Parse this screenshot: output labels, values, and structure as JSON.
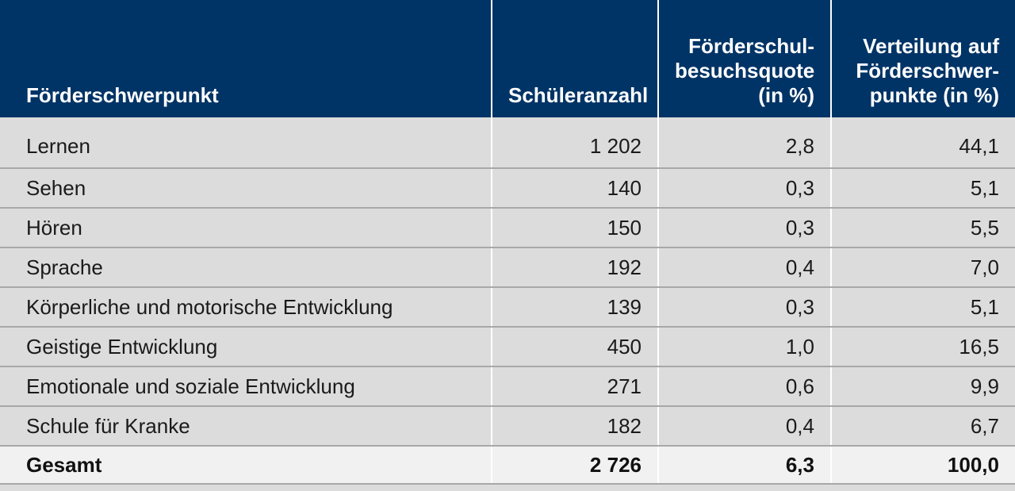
{
  "table": {
    "headers": [
      "Förderschwerpunkt",
      "Schüleranzahl",
      "Förderschul-\nbesuchsquote\n(in %)",
      "Verteilung auf\nFörderschwer-\npunkte (in %)"
    ],
    "header_lines": {
      "col3": [
        "Förderschul-",
        "besuchsquote",
        "(in %)"
      ],
      "col4": [
        "Verteilung auf",
        "Förderschwer-",
        "punkte (in %)"
      ]
    },
    "rows": [
      [
        "Lernen",
        "1 202",
        "2,8",
        "44,1"
      ],
      [
        "Sehen",
        "140",
        "0,3",
        "5,1"
      ],
      [
        "Hören",
        "150",
        "0,3",
        "5,5"
      ],
      [
        "Sprache",
        "192",
        "0,4",
        "7,0"
      ],
      [
        "Körperliche und motorische Entwicklung",
        "139",
        "0,3",
        "5,1"
      ],
      [
        "Geistige Entwicklung",
        "450",
        "1,0",
        "16,5"
      ],
      [
        "Emotionale und soziale Entwicklung",
        "271",
        "0,6",
        "9,9"
      ],
      [
        "Schule für Kranke",
        "182",
        "0,4",
        "6,7"
      ]
    ],
    "total": [
      "Gesamt",
      "2 726",
      "6,3",
      "100,0"
    ]
  },
  "colors": {
    "header_bg": "#003466",
    "body_bg": "#dcdcdd",
    "total_bg": "#f1f1f2"
  }
}
